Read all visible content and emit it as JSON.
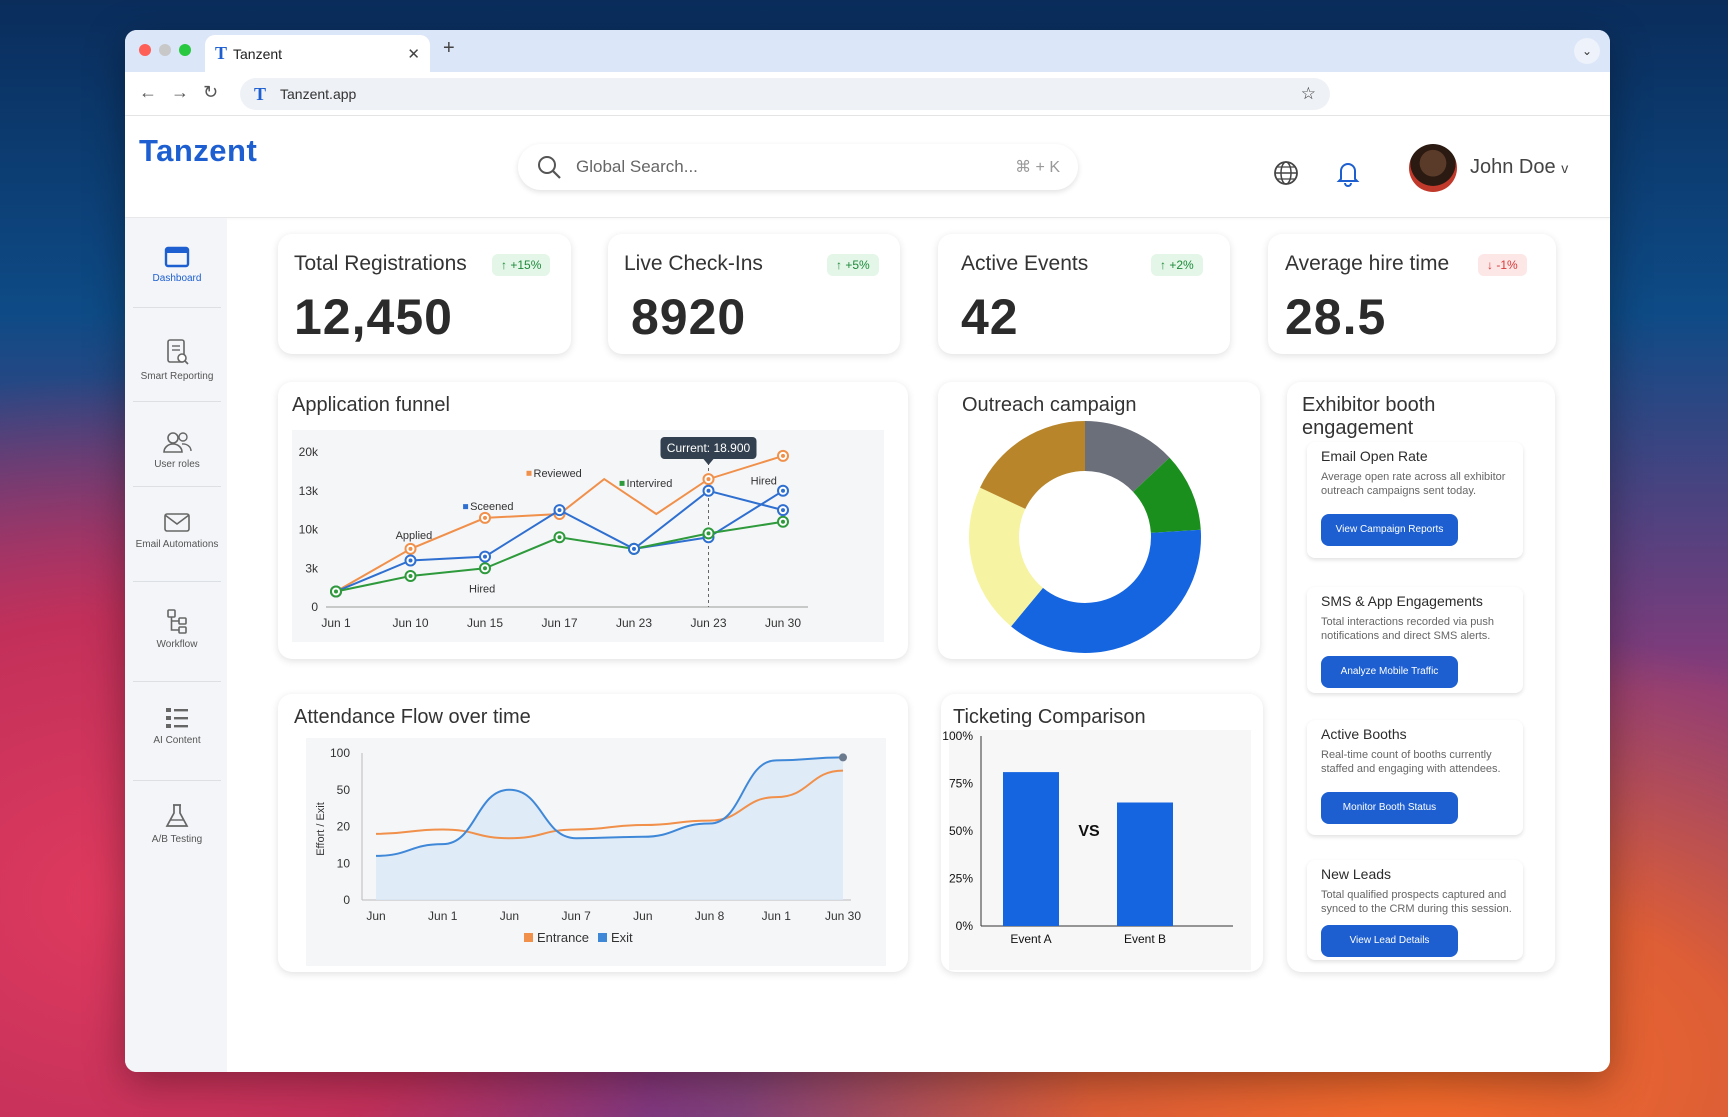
{
  "browser": {
    "tab_title": "Tanzent",
    "tab_logo": "T",
    "url": "Tanzent.app",
    "url_logo": "T"
  },
  "header": {
    "brand": "Tanzent",
    "search_placeholder": "Global Search...",
    "search_shortcut": "⌘ + K",
    "user_name": "John Doe",
    "user_chevron": "v"
  },
  "sidebar": {
    "items": [
      {
        "label": "Dashboard",
        "icon": "dashboard-icon",
        "active": true
      },
      {
        "label": "Smart Reporting",
        "icon": "report-icon"
      },
      {
        "label": "User roles",
        "icon": "users-icon"
      },
      {
        "label": "Email Automations",
        "icon": "mail-icon"
      },
      {
        "label": "Workflow",
        "icon": "workflow-icon"
      },
      {
        "label": "AI Content",
        "icon": "list-icon"
      },
      {
        "label": "A/B Testing",
        "icon": "flask-icon"
      }
    ]
  },
  "kpis": [
    {
      "label": "Total Registrations",
      "value": "12,450",
      "change": "+15%",
      "direction": "up"
    },
    {
      "label": "Live Check-Ins",
      "value": "8920",
      "change": "+5%",
      "direction": "up"
    },
    {
      "label": "Active Events",
      "value": "42",
      "change": "+2%",
      "direction": "up"
    },
    {
      "label": "Average hire time",
      "value": "28.5",
      "change": "-1%",
      "direction": "down"
    }
  ],
  "funnel": {
    "title": "Application funnel"
  },
  "outreach": {
    "title": "Outreach campaign"
  },
  "attendance": {
    "title": "Attendance Flow over time"
  },
  "ticketing": {
    "title": "Ticketing Comparison",
    "vs_label": "VS"
  },
  "exhibitor": {
    "title": "Exhibitor booth engagement",
    "items": [
      {
        "title": "Email Open Rate",
        "desc": "Average open rate across all exhibitor outreach campaigns sent today.",
        "button": "View Campaign Reports"
      },
      {
        "title": "SMS & App Engagements",
        "desc": "Total interactions recorded via push notifications and direct SMS alerts.",
        "button": "Analyze Mobile Traffic"
      },
      {
        "title": "Active Booths",
        "desc": "Real-time count of booths currently staffed and engaging with attendees.",
        "button": "Monitor Booth Status"
      },
      {
        "title": "New Leads",
        "desc": "Total qualified prospects captured and synced to the CRM during this session.",
        "button": "View Lead Details"
      }
    ]
  },
  "chart_data": [
    {
      "type": "line",
      "title": "Application funnel",
      "categories": [
        "Jun 1",
        "Jun 10",
        "Jun 15",
        "Jun 17",
        "Jun 23",
        "Jun 23",
        "Jun 30"
      ],
      "yticks": [
        "20k",
        "13k",
        "10k",
        "3k",
        "0"
      ],
      "ylim": [
        0,
        20
      ],
      "series": [
        {
          "name": "Reviewed",
          "color": "#f0904a",
          "points": [
            [
              0,
              2
            ],
            [
              1,
              7.5
            ],
            [
              2,
              11.5
            ],
            [
              3,
              12
            ],
            [
              3.6,
              16.5
            ],
            [
              4.3,
              12
            ],
            [
              5,
              16.5
            ],
            [
              6,
              19.5
            ]
          ]
        },
        {
          "name": "Sceened",
          "color": "#2e6fd0",
          "points": [
            [
              0,
              2
            ],
            [
              1,
              6
            ],
            [
              2,
              6.5
            ],
            [
              3,
              12.5
            ],
            [
              4,
              7.5
            ],
            [
              5,
              9
            ],
            [
              6,
              15
            ]
          ]
        },
        {
          "name": "Intervired",
          "color": "#2e9a3c",
          "points": [
            [
              0,
              2
            ],
            [
              1,
              4
            ],
            [
              2,
              5
            ],
            [
              3,
              9
            ],
            [
              4,
              7.5
            ],
            [
              5,
              9.5
            ],
            [
              6,
              11
            ]
          ]
        },
        {
          "name": "Hired",
          "color": "#2e6fd0",
          "points": [
            [
              4,
              7.5
            ],
            [
              5,
              15
            ],
            [
              6,
              12.5
            ]
          ]
        }
      ],
      "annotations": [
        "Reviewed",
        "Intervired",
        "Sceened",
        "Applied",
        "Hired",
        "Hired"
      ],
      "tooltip": "Current: 18.900"
    },
    {
      "type": "pie",
      "title": "Outreach campaign",
      "donut": true,
      "slices": [
        {
          "color": "#6b6f7a",
          "value": 13
        },
        {
          "color": "#1a8f1e",
          "value": 11
        },
        {
          "color": "#1565e0",
          "value": 37
        },
        {
          "color": "#f6f4a2",
          "value": 21
        },
        {
          "color": "#b8852a",
          "value": 18
        }
      ]
    },
    {
      "type": "area",
      "title": "Attendance Flow over time",
      "ylabel": "Effort / Exit",
      "categories": [
        "Jun",
        "Jun 1",
        "Jun",
        "Jun 7",
        "Jun",
        "Jun 8",
        "Jun 1",
        "Jun 30"
      ],
      "yticks": [
        "100",
        "50",
        "20",
        "10",
        "0"
      ],
      "series": [
        {
          "name": "Entrance",
          "color": "#f0904a",
          "values": [
            45,
            48,
            42,
            48,
            51,
            54,
            70,
            88
          ]
        },
        {
          "name": "Exit",
          "color": "#3f88d8",
          "values": [
            30,
            38,
            75,
            42,
            43,
            52,
            95,
            97
          ]
        }
      ]
    },
    {
      "type": "bar",
      "title": "Ticketing Comparison",
      "categories": [
        "Event A",
        "Event B"
      ],
      "values": [
        81,
        65
      ],
      "yticks": [
        "100%",
        "75%",
        "50%",
        "25%",
        "0%"
      ],
      "ylim": [
        0,
        100
      ]
    }
  ]
}
